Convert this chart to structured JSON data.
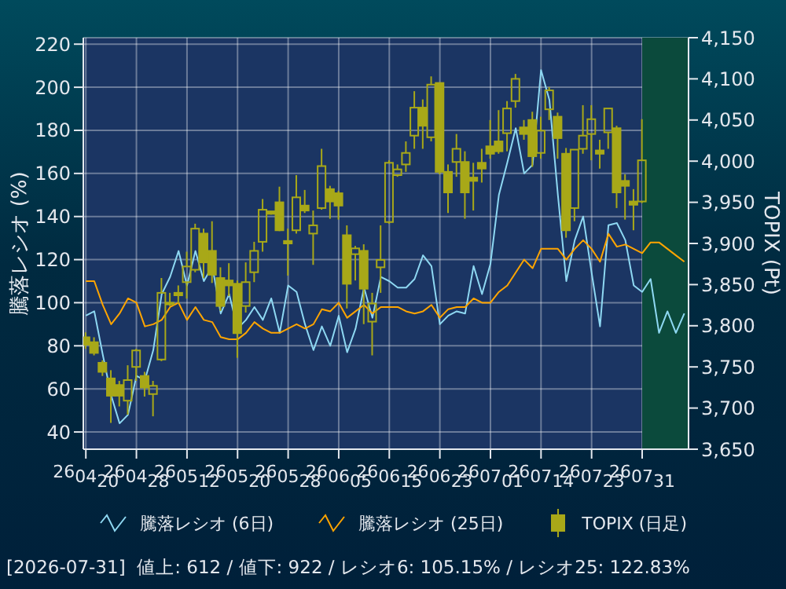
{
  "chart_data": {
    "type": "line",
    "ylabel": "騰落レシオ (%)",
    "y2label": "TOPIX (Pt)",
    "categories": [
      "260420",
      null,
      null,
      null,
      null,
      null,
      "260428",
      null,
      null,
      null,
      null,
      null,
      "260512",
      null,
      null,
      null,
      null,
      null,
      "260520",
      null,
      null,
      null,
      null,
      null,
      "260528",
      null,
      null,
      null,
      null,
      null,
      "260605",
      null,
      null,
      null,
      null,
      null,
      "260615",
      null,
      null,
      null,
      null,
      null,
      "260623",
      null,
      null,
      null,
      null,
      null,
      "260701",
      null,
      null,
      null,
      null,
      null,
      "260714",
      null,
      null,
      null,
      null,
      null,
      "260723",
      null,
      null,
      null,
      null,
      null,
      "260731",
      null,
      null,
      null,
      null,
      null
    ],
    "ylim": [
      32,
      223
    ],
    "yticks": [
      40,
      60,
      80,
      100,
      120,
      140,
      160,
      180,
      200,
      220
    ],
    "y2lim": [
      3650,
      4150
    ],
    "y2ticks": [
      {
        "value": 3650,
        "label": "3,650"
      },
      {
        "value": 3700,
        "label": "3,700"
      },
      {
        "value": 3750,
        "label": "3,750"
      },
      {
        "value": 3800,
        "label": "3,800"
      },
      {
        "value": 3850,
        "label": "3,850"
      },
      {
        "value": 3900,
        "label": "3,900"
      },
      {
        "value": 3950,
        "label": "3,950"
      },
      {
        "value": 4000,
        "label": "4,000"
      },
      {
        "value": 4050,
        "label": "4,050"
      },
      {
        "value": 4100,
        "label": "4,100"
      },
      {
        "value": 4150,
        "label": "4,150"
      }
    ],
    "grid": true,
    "legend": "bottom",
    "series": [
      {
        "name": "騰落レシオ (6日)",
        "color": "#8ed8f2",
        "values": [
          94,
          96,
          76,
          57,
          44,
          48,
          66,
          64,
          78,
          104,
          112,
          124,
          108,
          124,
          110,
          117,
          95,
          104,
          88,
          92,
          98,
          92,
          102,
          86,
          108,
          105,
          90,
          78,
          89,
          80,
          94,
          77,
          88,
          107,
          93,
          112,
          110,
          107,
          107,
          111,
          122,
          117,
          90,
          94,
          96,
          95,
          117,
          104,
          118,
          150,
          165,
          181,
          160,
          164,
          208,
          194,
          150,
          110,
          129,
          140,
          114,
          89,
          136,
          137,
          129,
          108,
          105,
          111,
          86,
          96,
          86,
          95
        ]
      },
      {
        "name": "騰落レシオ (25日)",
        "color": "#ffa500",
        "values": [
          110,
          110,
          99,
          90,
          95,
          102,
          100,
          89,
          90,
          92,
          98,
          100,
          92,
          98,
          92,
          91,
          84,
          83,
          83,
          86,
          91,
          88,
          86,
          86,
          88,
          90,
          88,
          90,
          97,
          96,
          100,
          93,
          96,
          99,
          95,
          98,
          98,
          98,
          96,
          95,
          96,
          99,
          93,
          97,
          98,
          98,
          102,
          100,
          100,
          105,
          108,
          114,
          120,
          116,
          125,
          125,
          125,
          120,
          125,
          129,
          125,
          119,
          132,
          126,
          127,
          125,
          123,
          128,
          128,
          125,
          122,
          119
        ]
      },
      {
        "name": "TOPIX (日足)",
        "type": "candlestick",
        "axis": "y2",
        "color": "#a8a818",
        "ohlc": [
          [
            3786,
            3792,
            3772,
            3777
          ],
          [
            3780,
            3786,
            3764,
            3767
          ],
          [
            3755,
            3758,
            3739,
            3744
          ],
          [
            3736,
            3746,
            3682,
            3715
          ],
          [
            3728,
            3733,
            3702,
            3715
          ],
          [
            3709,
            3752,
            3692,
            3734
          ],
          [
            3750,
            3772,
            3733,
            3770
          ],
          [
            3739,
            3744,
            3714,
            3725
          ],
          [
            3717,
            3733,
            3690,
            3727
          ],
          [
            3759,
            3858,
            3757,
            3840
          ],
          [
            3828,
            3840,
            3824,
            3826
          ],
          [
            3840,
            3849,
            3827,
            3837
          ],
          [
            3853,
            3890,
            3833,
            3872
          ],
          [
            3868,
            3924,
            3865,
            3918
          ],
          [
            3912,
            3918,
            3858,
            3877
          ],
          [
            3891,
            3927,
            3852,
            3862
          ],
          [
            3858,
            3871,
            3818,
            3824
          ],
          [
            3855,
            3876,
            3836,
            3849
          ],
          [
            3851,
            3855,
            3761,
            3791
          ],
          [
            3824,
            3877,
            3816,
            3853
          ],
          [
            3865,
            3902,
            3853,
            3891
          ],
          [
            3902,
            3954,
            3890,
            3941
          ],
          [
            3939,
            3939,
            3935,
            3936
          ],
          [
            3950,
            3969,
            3915,
            3916
          ],
          [
            3903,
            3918,
            3861,
            3900
          ],
          [
            3916,
            3983,
            3912,
            3956
          ],
          [
            3946,
            3965,
            3937,
            3940
          ],
          [
            3912,
            3940,
            3874,
            3922
          ],
          [
            3943,
            4015,
            3941,
            3994
          ],
          [
            3966,
            3970,
            3930,
            3951
          ],
          [
            3961,
            3964,
            3929,
            3946
          ],
          [
            3910,
            3922,
            3821,
            3851
          ],
          [
            3887,
            3897,
            3855,
            3894
          ],
          [
            3891,
            3899,
            3802,
            3845
          ],
          [
            3805,
            3840,
            3764,
            3827
          ],
          [
            3871,
            3922,
            3840,
            3880
          ],
          [
            3926,
            4001,
            3924,
            3998
          ],
          [
            3983,
            3996,
            3981,
            3990
          ],
          [
            3996,
            4024,
            3987,
            4010
          ],
          [
            4031,
            4085,
            4015,
            4065
          ],
          [
            4065,
            4075,
            4015,
            4043
          ],
          [
            4029,
            4103,
            4024,
            4093
          ],
          [
            4095,
            4095,
            3984,
            3987
          ],
          [
            3987,
            3996,
            3937,
            3962
          ],
          [
            3999,
            4033,
            3981,
            4015
          ],
          [
            3999,
            4012,
            3930,
            3962
          ],
          [
            3980,
            3998,
            3940,
            3976
          ],
          [
            3998,
            4015,
            3974,
            3991
          ],
          [
            4018,
            4050,
            4003,
            4009
          ],
          [
            4024,
            4062,
            4009,
            4012
          ],
          [
            4034,
            4073,
            4012,
            4064
          ],
          [
            4073,
            4106,
            4065,
            4100
          ],
          [
            4041,
            4050,
            4026,
            4033
          ],
          [
            4050,
            4060,
            3993,
            4006
          ],
          [
            4010,
            4054,
            4003,
            4037
          ],
          [
            4063,
            4090,
            4050,
            4086
          ],
          [
            4054,
            4059,
            4003,
            4028
          ],
          [
            4009,
            4016,
            3907,
            3916
          ],
          [
            3943,
            4014,
            3927,
            4014
          ],
          [
            4015,
            4068,
            4009,
            4031
          ],
          [
            4033,
            4068,
            4001,
            4051
          ],
          [
            4013,
            4026,
            3991,
            4009
          ],
          [
            4035,
            4064,
            4015,
            4064
          ],
          [
            4040,
            4043,
            3943,
            3962
          ],
          [
            3976,
            3984,
            3929,
            3970
          ],
          [
            3951,
            3966,
            3916,
            3947
          ],
          [
            3951,
            4051,
            3949,
            4001
          ],
          null,
          null,
          null,
          null,
          null
        ]
      }
    ],
    "annotations": [
      "[2026-07-31]  値上: 612 / 値下: 922 / レシオ6: 105.15% / レシオ25: 122.83%"
    ]
  }
}
